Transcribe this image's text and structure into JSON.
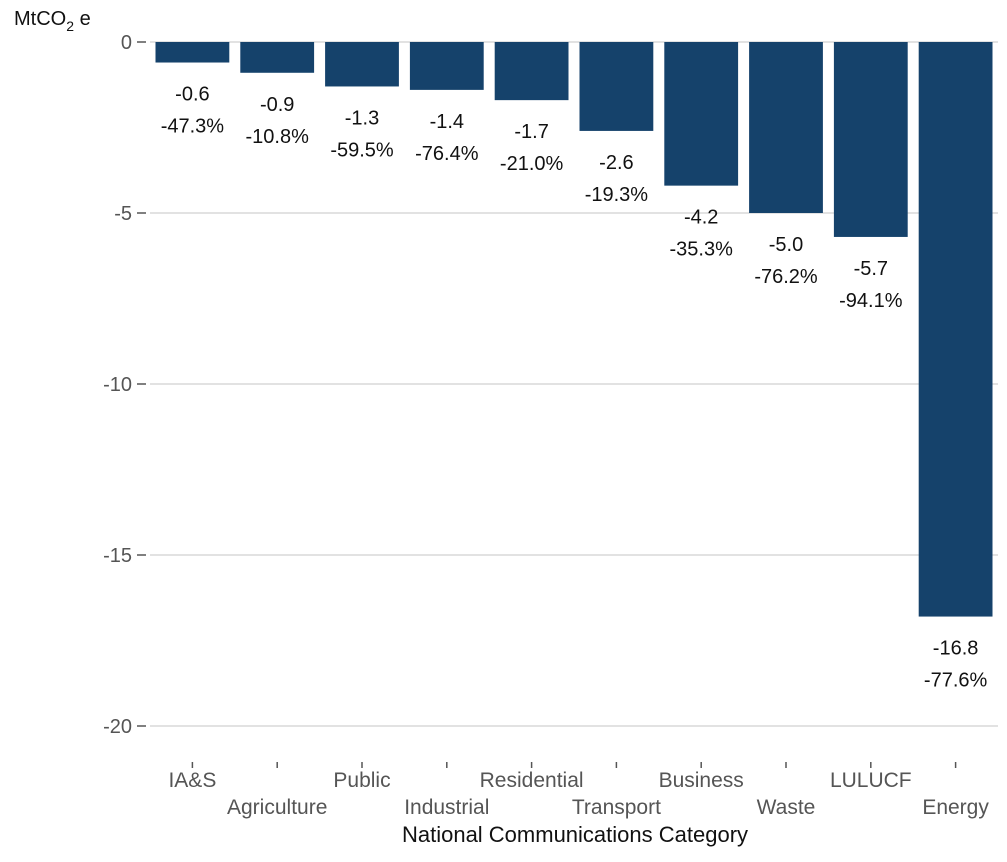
{
  "chart_data": {
    "type": "bar",
    "categories": [
      "IA&S",
      "Agriculture",
      "Public",
      "Industrial",
      "Residential",
      "Transport",
      "Business",
      "Waste",
      "LULUCF",
      "Energy"
    ],
    "values": [
      -0.6,
      -0.9,
      -1.3,
      -1.4,
      -1.7,
      -2.6,
      -4.2,
      -5.0,
      -5.7,
      -16.8
    ],
    "value_labels": [
      "-0.6",
      "-0.9",
      "-1.3",
      "-1.4",
      "-1.7",
      "-2.6",
      "-4.2",
      "-5.0",
      "-5.7",
      "-16.8"
    ],
    "percent_labels": [
      "-47.3%",
      "-10.8%",
      "-59.5%",
      "-76.4%",
      "-21.0%",
      "-19.3%",
      "-35.3%",
      "-76.2%",
      "-94.1%",
      "-77.6%"
    ],
    "title": "",
    "xlabel": "National Communications Category",
    "ylabel": {
      "prefix": "MtCO",
      "subscript": "2",
      "suffix": " e"
    },
    "ylim": [
      -20,
      0
    ],
    "yticks": [
      0,
      -5,
      -10,
      -15,
      -20
    ],
    "ytick_labels": [
      "0",
      "-5",
      "-10",
      "-15",
      "-20"
    ],
    "grid": true,
    "bar_color": "#15426b"
  }
}
